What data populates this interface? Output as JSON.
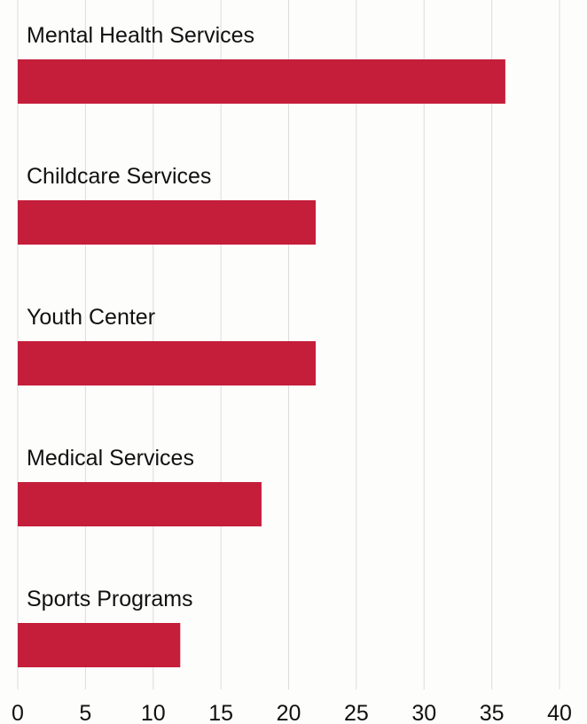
{
  "chart_data": {
    "type": "bar",
    "orientation": "horizontal",
    "title": "",
    "xlabel": "",
    "ylabel": "",
    "categories": [
      "Mental Health Services",
      "Childcare Services",
      "Youth Center",
      "Medical Services",
      "Sports Programs"
    ],
    "values": [
      36,
      22,
      22,
      18,
      12
    ],
    "xlim": [
      0,
      40
    ],
    "xticks": [
      "0",
      "5",
      "10",
      "15",
      "20",
      "25",
      "30",
      "35",
      "40"
    ],
    "grid": "vertical",
    "legend": "none",
    "bar_color": "#c41e3a"
  }
}
